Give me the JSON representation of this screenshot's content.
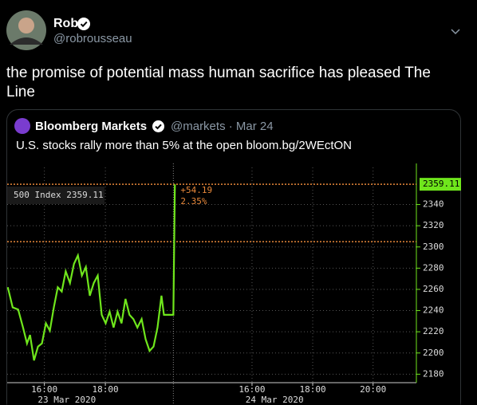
{
  "tweet": {
    "name": "Rob",
    "handle": "@robrousseau",
    "text": "the promise of potential mass human sacrifice has pleased The Line"
  },
  "quoted": {
    "name": "Bloomberg Markets",
    "meta": "@markets · Mar 24",
    "text": "U.S. stocks rally more than 5% at the open bloom.bg/2WEctON"
  },
  "chart_data": {
    "type": "line",
    "x": [
      14.8,
      14.96,
      15.14,
      15.3,
      15.43,
      15.53,
      15.66,
      15.79,
      15.92,
      16.05,
      16.18,
      16.31,
      16.44,
      16.57,
      16.7,
      16.84,
      16.97,
      17.1,
      17.23,
      17.36,
      17.49,
      17.62,
      17.75,
      17.88,
      18.01,
      18.14,
      18.27,
      18.4,
      18.53,
      18.66,
      18.79,
      18.92,
      19.05,
      19.19,
      19.32,
      19.45,
      19.58,
      19.71,
      19.84,
      19.92,
      20.05,
      20.23,
      20.28
    ],
    "series": [
      {
        "name": "500 Index 2359.11",
        "color": "#6fe61c",
        "values": [
          2262,
          2243,
          2241,
          2224,
          2209,
          2217,
          2193,
          2206,
          2209,
          2228,
          2221,
          2243,
          2262,
          2258,
          2277,
          2266,
          2284,
          2292,
          2273,
          2281,
          2254,
          2266,
          2273,
          2236,
          2228,
          2239,
          2224,
          2239,
          2228,
          2251,
          2236,
          2232,
          2224,
          2232,
          2213,
          2202,
          2206,
          2224,
          2254,
          2236,
          2236,
          2236,
          2359
        ]
      }
    ],
    "last_value": 2359.11,
    "annotations": [
      "+54.19",
      "2.35%"
    ],
    "hlines": [
      {
        "value": 2359.11,
        "color": "#e8883a"
      },
      {
        "value": 2305,
        "color": "#e8883a"
      }
    ],
    "session_breaks": [
      20.23
    ],
    "date_labels": [
      "23 Mar 2020",
      "24 Mar 2020"
    ],
    "xlim": [
      14.78,
      28.2
    ],
    "xticks": [
      {
        "value": 16,
        "label": "16:00"
      },
      {
        "value": 18,
        "label": "18:00"
      },
      {
        "value": 22.81,
        "label": "16:00"
      },
      {
        "value": 24.8,
        "label": "18:00"
      },
      {
        "value": 26.78,
        "label": "20:00"
      }
    ],
    "ylim": [
      2172,
      2375
    ],
    "yticks": [
      2180,
      2200,
      2220,
      2240,
      2260,
      2280,
      2300,
      2320,
      2340
    ],
    "grid": true
  }
}
